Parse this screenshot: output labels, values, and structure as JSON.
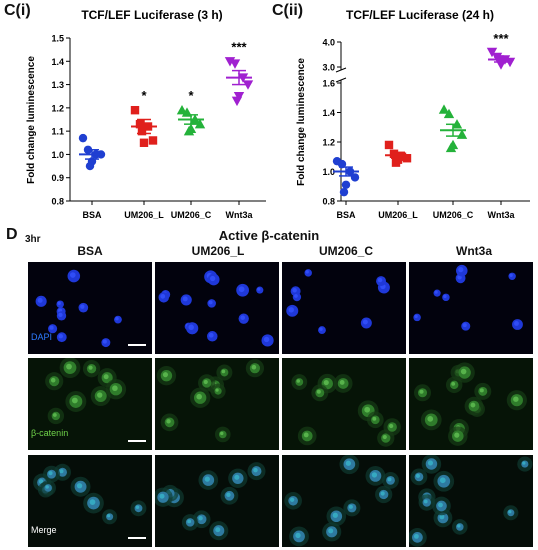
{
  "panels": {
    "ci_label": "C(i)",
    "cii_label": "C(ii)",
    "d_label": "D",
    "d_time": "3hr",
    "d_title": "Active β-catenin"
  },
  "colors": {
    "BSA": "#1f3fd1",
    "UM206_L": "#e0201c",
    "UM206_C": "#24b23a",
    "Wnt3a": "#a020d0",
    "dapi_label": "#2e7bff",
    "catenin_label": "#6fd24a",
    "merge_label": "#ffffff"
  },
  "chart_data": [
    {
      "type": "scatter",
      "title": "TCF/LEF Luciferase (3 h)",
      "ylabel": "Fold change luminescence",
      "xlabel": "",
      "categories": [
        "BSA",
        "UM206_L",
        "UM206_C",
        "Wnt3a"
      ],
      "ylim": [
        0.8,
        1.5
      ],
      "yticks": [
        "0.8",
        "0.9",
        "1.0",
        "1.1",
        "1.2",
        "1.3",
        "1.4",
        "1.5"
      ],
      "series": [
        {
          "category": "BSA",
          "marker": "circle",
          "points": [
            1.07,
            1.02,
            1.0,
            1.0,
            0.97,
            0.95
          ],
          "mean": 1.0,
          "sem": 0.02,
          "sig": ""
        },
        {
          "category": "UM206_L",
          "marker": "square",
          "points": [
            1.19,
            1.13,
            1.12,
            1.06,
            1.05,
            1.1
          ],
          "mean": 1.12,
          "sem": 0.03,
          "sig": "*"
        },
        {
          "category": "UM206_C",
          "marker": "triangle-up",
          "points": [
            1.19,
            1.18,
            1.15,
            1.13,
            1.11,
            1.1
          ],
          "mean": 1.15,
          "sem": 0.02,
          "sig": "*"
        },
        {
          "category": "Wnt3a",
          "marker": "triangle-down",
          "points": [
            1.4,
            1.39,
            1.33,
            1.3,
            1.25,
            1.23
          ],
          "mean": 1.33,
          "sem": 0.03,
          "sig": "***"
        }
      ]
    },
    {
      "type": "scatter",
      "title": "TCF/LEF Luciferase (24 h)",
      "ylabel": "Fold change luminescence",
      "xlabel": "",
      "categories": [
        "BSA",
        "UM206_L",
        "UM206_C",
        "Wnt3a"
      ],
      "ylim_lower": [
        0.8,
        1.6
      ],
      "ylim_upper": [
        3.0,
        4.0
      ],
      "axis_break": true,
      "yticks_lower": [
        "0.8",
        "1.0",
        "1.2",
        "1.4",
        "1.6"
      ],
      "yticks_upper": [
        "3.0",
        "4.0"
      ],
      "series": [
        {
          "category": "BSA",
          "marker": "circle",
          "points": [
            1.07,
            1.05,
            1.0,
            0.96,
            0.91,
            0.86
          ],
          "mean": 1.0,
          "sem": 0.03,
          "sig": ""
        },
        {
          "category": "UM206_L",
          "marker": "square",
          "points": [
            1.18,
            1.12,
            1.1,
            1.09,
            1.08,
            1.06
          ],
          "mean": 1.11,
          "sem": 0.02,
          "sig": ""
        },
        {
          "category": "UM206_C",
          "marker": "triangle-up",
          "points": [
            1.42,
            1.39,
            1.32,
            1.25,
            1.18,
            1.16
          ],
          "mean": 1.28,
          "sem": 0.04,
          "sig": ""
        },
        {
          "category": "Wnt3a",
          "marker": "triangle-down",
          "points": [
            3.6,
            3.4,
            3.3,
            3.2,
            3.1,
            3.3
          ],
          "mean": 3.3,
          "sem": 0.1,
          "sig": "***"
        }
      ]
    }
  ],
  "micrographs": {
    "columns": [
      "BSA",
      "UM206_L",
      "UM206_C",
      "Wnt3a"
    ],
    "rows": [
      {
        "label": "DAPI",
        "tone": "dapi"
      },
      {
        "label": "β-catenin",
        "tone": "catenin"
      },
      {
        "label": "Merge",
        "tone": "merge"
      }
    ]
  }
}
